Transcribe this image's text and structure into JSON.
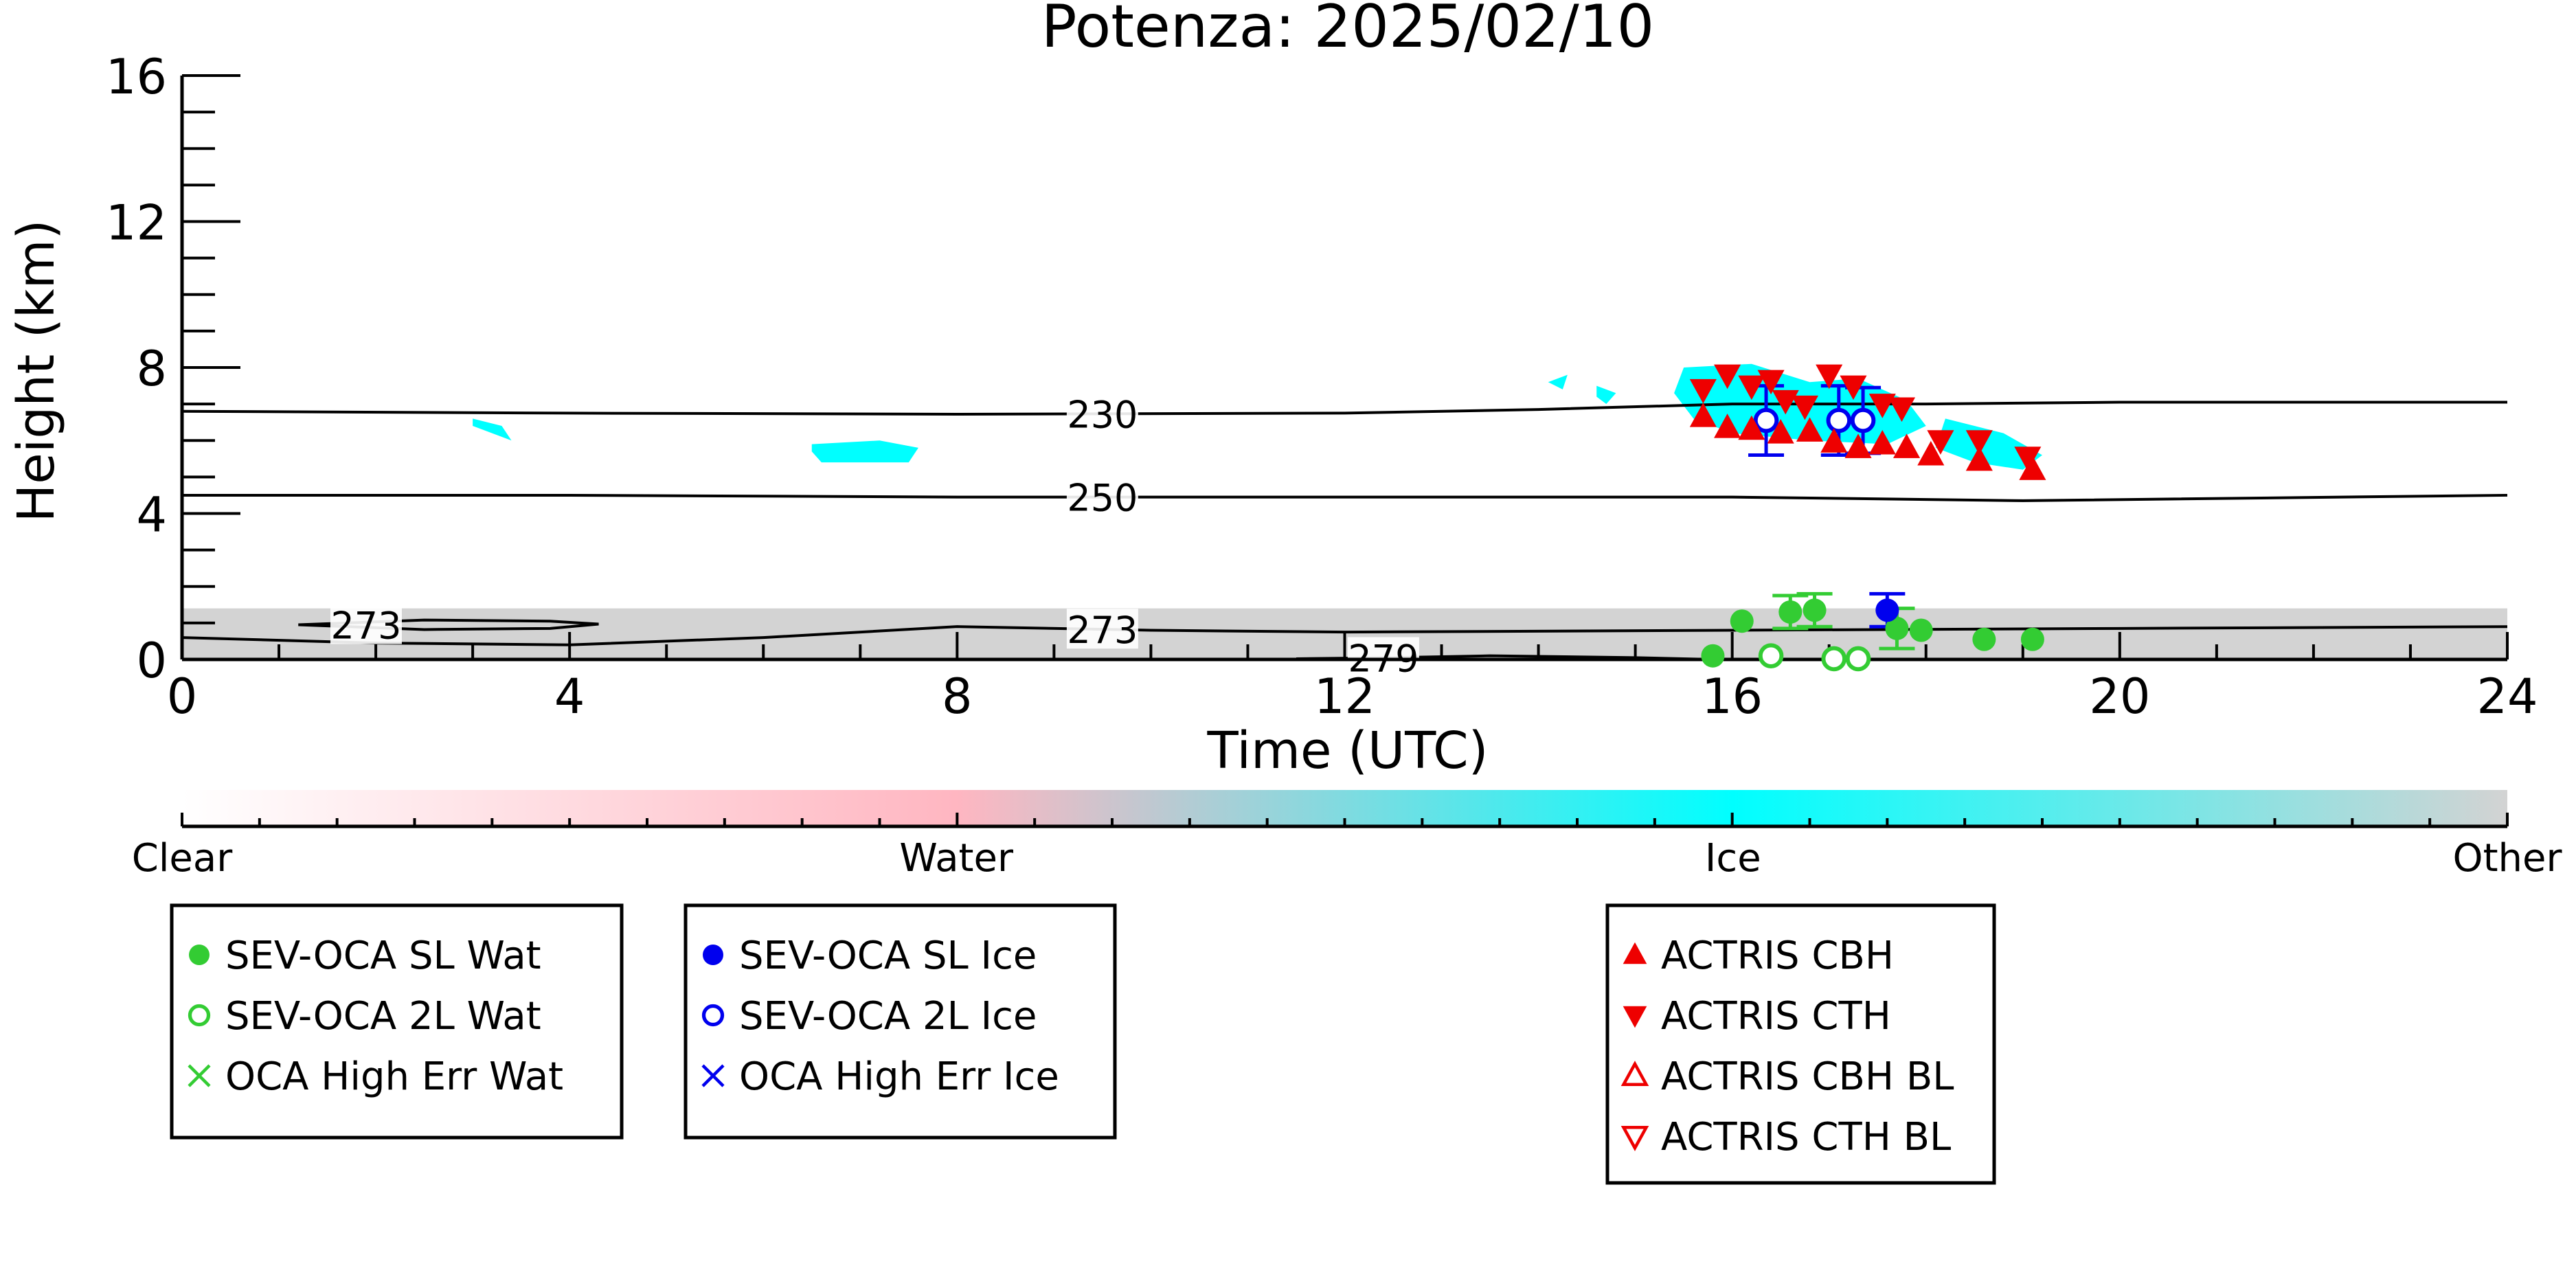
{
  "chart_data": {
    "type": "scatter",
    "title": "Potenza: 2025/02/10",
    "xlabel": "Time (UTC)",
    "ylabel": "Height (km)",
    "xlim": [
      0,
      24
    ],
    "ylim": [
      0,
      16
    ],
    "x_ticks": [
      "0",
      "4",
      "8",
      "12",
      "16",
      "20",
      "24"
    ],
    "y_ticks": [
      "0",
      "4",
      "8",
      "12",
      "16"
    ],
    "grid": false,
    "colorbar": {
      "labels": [
        {
          "text": "Clear",
          "pos": 0.0
        },
        {
          "text": "Water",
          "pos": 0.333
        },
        {
          "text": "Ice",
          "pos": 0.667
        },
        {
          "text": "Other",
          "pos": 1.0
        }
      ],
      "colors": {
        "clear": "#ffffff",
        "water": "#ffb6c1",
        "ice": "#00ffff",
        "other": "#d3d3d3"
      }
    },
    "contours": [
      {
        "label": "230",
        "label_x": 9.5,
        "points": [
          [
            0,
            6.8
          ],
          [
            4,
            6.75
          ],
          [
            8,
            6.72
          ],
          [
            12,
            6.75
          ],
          [
            14,
            6.85
          ],
          [
            16,
            7.0
          ],
          [
            18,
            7.0
          ],
          [
            20,
            7.05
          ],
          [
            24,
            7.05
          ]
        ]
      },
      {
        "label": "250",
        "label_x": 9.5,
        "points": [
          [
            0,
            4.5
          ],
          [
            4,
            4.5
          ],
          [
            8,
            4.45
          ],
          [
            12,
            4.45
          ],
          [
            16,
            4.45
          ],
          [
            19,
            4.35
          ],
          [
            24,
            4.5
          ]
        ]
      },
      {
        "label": "273",
        "label_x": 9.5,
        "points": [
          [
            0,
            0.6
          ],
          [
            2,
            0.45
          ],
          [
            4,
            0.4
          ],
          [
            6,
            0.6
          ],
          [
            8,
            0.9
          ],
          [
            10,
            0.8
          ],
          [
            12,
            0.75
          ],
          [
            16,
            0.8
          ],
          [
            20,
            0.85
          ],
          [
            24,
            0.9
          ]
        ]
      },
      {
        "label": "273",
        "label_x": 1.9,
        "closed": true,
        "points": [
          [
            1.2,
            0.95
          ],
          [
            2.5,
            1.08
          ],
          [
            3.8,
            1.05
          ],
          [
            4.3,
            0.97
          ],
          [
            3.8,
            0.85
          ],
          [
            2.5,
            0.82
          ],
          [
            1.2,
            0.95
          ]
        ]
      },
      {
        "label": "279",
        "label_x": 12.4,
        "points": [
          [
            11.5,
            0.02
          ],
          [
            12.5,
            0.05
          ],
          [
            13.5,
            0.1
          ],
          [
            15.0,
            0.05
          ],
          [
            15.8,
            0.0
          ]
        ]
      }
    ],
    "ice_regions": [
      {
        "points": [
          [
            3.0,
            6.6
          ],
          [
            3.3,
            6.4
          ],
          [
            3.4,
            6.0
          ],
          [
            3.2,
            6.2
          ],
          [
            3.0,
            6.4
          ]
        ]
      },
      {
        "points": [
          [
            6.5,
            5.9
          ],
          [
            7.2,
            6.0
          ],
          [
            7.6,
            5.8
          ],
          [
            7.5,
            5.4
          ],
          [
            6.6,
            5.4
          ],
          [
            6.5,
            5.7
          ]
        ]
      },
      {
        "points": [
          [
            15.5,
            8.0
          ],
          [
            16.2,
            8.1
          ],
          [
            16.8,
            7.6
          ],
          [
            17.3,
            7.7
          ],
          [
            17.8,
            7.1
          ],
          [
            18.0,
            6.4
          ],
          [
            17.6,
            5.9
          ],
          [
            16.8,
            6.0
          ],
          [
            16.0,
            6.2
          ],
          [
            15.6,
            6.6
          ],
          [
            15.4,
            7.3
          ]
        ]
      },
      {
        "points": [
          [
            18.2,
            6.6
          ],
          [
            18.8,
            6.2
          ],
          [
            19.2,
            5.6
          ],
          [
            19.0,
            5.2
          ],
          [
            18.5,
            5.4
          ],
          [
            18.1,
            5.8
          ]
        ]
      },
      {
        "points": [
          [
            14.1,
            7.6
          ],
          [
            14.3,
            7.8
          ],
          [
            14.25,
            7.4
          ]
        ]
      },
      {
        "points": [
          [
            14.6,
            7.5
          ],
          [
            14.8,
            7.3
          ],
          [
            14.7,
            7.0
          ],
          [
            14.6,
            7.2
          ]
        ]
      }
    ],
    "other_layer_top": 1.4,
    "series": [
      {
        "name": "SEV-OCA SL Wat",
        "marker": "filled-circle",
        "color": "#33cc33",
        "points": [
          [
            15.8,
            0.1
          ],
          [
            16.1,
            1.05
          ],
          [
            16.6,
            1.3
          ],
          [
            16.85,
            1.35
          ],
          [
            17.7,
            0.85
          ],
          [
            17.95,
            0.8
          ],
          [
            18.6,
            0.55
          ],
          [
            19.1,
            0.55
          ]
        ],
        "error_bars": [
          [
            16.6,
            1.3,
            0.45
          ],
          [
            16.85,
            1.35,
            0.45
          ],
          [
            17.7,
            0.85,
            0.55
          ]
        ]
      },
      {
        "name": "SEV-OCA 2L Wat",
        "marker": "open-circle",
        "color": "#33cc33",
        "points": [
          [
            16.4,
            0.1
          ],
          [
            17.05,
            0.02
          ],
          [
            17.3,
            0.02
          ]
        ]
      },
      {
        "name": "OCA High Err Wat",
        "marker": "x",
        "color": "#33cc33",
        "points": []
      },
      {
        "name": "SEV-OCA SL Ice",
        "marker": "filled-circle",
        "color": "#0000ee",
        "points": [
          [
            17.6,
            1.35
          ]
        ],
        "error_bars": [
          [
            17.6,
            1.35,
            0.45
          ]
        ]
      },
      {
        "name": "SEV-OCA 2L Ice",
        "marker": "open-circle",
        "color": "#0000ee",
        "points": [
          [
            16.35,
            6.55
          ],
          [
            17.1,
            6.55
          ],
          [
            17.35,
            6.55
          ]
        ],
        "error_bars": [
          [
            16.35,
            6.55,
            0.95
          ],
          [
            17.1,
            6.55,
            0.95
          ],
          [
            17.35,
            6.55,
            0.9
          ]
        ]
      },
      {
        "name": "OCA High Err Ice",
        "marker": "x",
        "color": "#0000ee",
        "points": []
      },
      {
        "name": "ACTRIS CBH",
        "marker": "triangle-up",
        "color": "#ee0000",
        "points": [
          [
            15.7,
            6.65
          ],
          [
            15.95,
            6.35
          ],
          [
            16.2,
            6.3
          ],
          [
            16.5,
            6.2
          ],
          [
            16.8,
            6.25
          ],
          [
            17.05,
            5.95
          ],
          [
            17.3,
            5.8
          ],
          [
            17.55,
            5.9
          ],
          [
            17.8,
            5.8
          ],
          [
            18.05,
            5.6
          ],
          [
            18.55,
            5.45
          ],
          [
            19.1,
            5.2
          ]
        ]
      },
      {
        "name": "ACTRIS CTH",
        "marker": "triangle-down",
        "color": "#ee0000",
        "points": [
          [
            15.7,
            7.4
          ],
          [
            15.95,
            7.8
          ],
          [
            16.2,
            7.5
          ],
          [
            16.4,
            7.65
          ],
          [
            16.55,
            7.1
          ],
          [
            16.75,
            6.95
          ],
          [
            17.0,
            7.8
          ],
          [
            17.25,
            7.5
          ],
          [
            17.55,
            7.0
          ],
          [
            17.75,
            6.9
          ],
          [
            18.15,
            6.0
          ],
          [
            18.55,
            6.0
          ],
          [
            19.05,
            5.55
          ]
        ]
      },
      {
        "name": "ACTRIS CBH BL",
        "marker": "open-triangle-up",
        "color": "#ee0000",
        "points": []
      },
      {
        "name": "ACTRIS CTH BL",
        "marker": "open-triangle-down",
        "color": "#ee0000",
        "points": []
      }
    ],
    "legend_groups": [
      [
        "SEV-OCA SL Wat",
        "SEV-OCA 2L Wat",
        "OCA High Err Wat"
      ],
      [
        "SEV-OCA SL Ice",
        "SEV-OCA 2L Ice",
        "OCA High Err Ice"
      ],
      [
        "ACTRIS CBH",
        "ACTRIS CTH",
        "ACTRIS CBH BL",
        "ACTRIS CTH BL"
      ]
    ],
    "legend_placement": "bottom"
  }
}
